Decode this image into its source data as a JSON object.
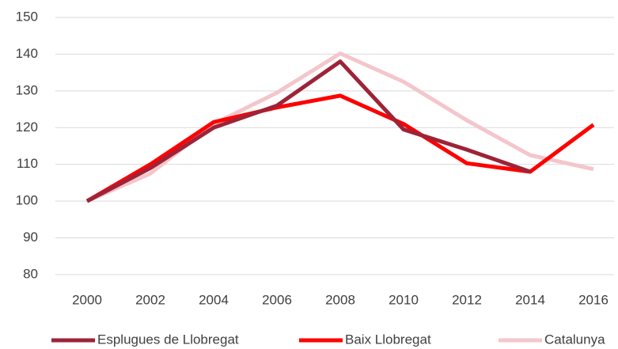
{
  "chart_data": {
    "type": "line",
    "categories": [
      "2000",
      "2002",
      "2004",
      "2006",
      "2008",
      "2010",
      "2012",
      "2014",
      "2016"
    ],
    "series": [
      {
        "name": "Esplugues de Llobregat",
        "color": "#9e2338",
        "values": [
          100,
          109,
          120,
          126,
          138,
          119.5,
          114,
          108,
          null
        ]
      },
      {
        "name": "Baix Llobregat",
        "color": "#ff0000",
        "values": [
          100,
          110,
          121.5,
          125.5,
          128.7,
          121,
          110.3,
          108,
          120.8
        ]
      },
      {
        "name": "Catalunya",
        "color": "#f4c6cb",
        "values": [
          100,
          107.5,
          121,
          129.5,
          140.2,
          132.5,
          122,
          112.5,
          108.7
        ]
      }
    ],
    "ylim": [
      80,
      150
    ],
    "yticks": [
      80,
      90,
      100,
      110,
      120,
      130,
      140,
      150
    ],
    "grid": true,
    "legend": "bottom"
  }
}
